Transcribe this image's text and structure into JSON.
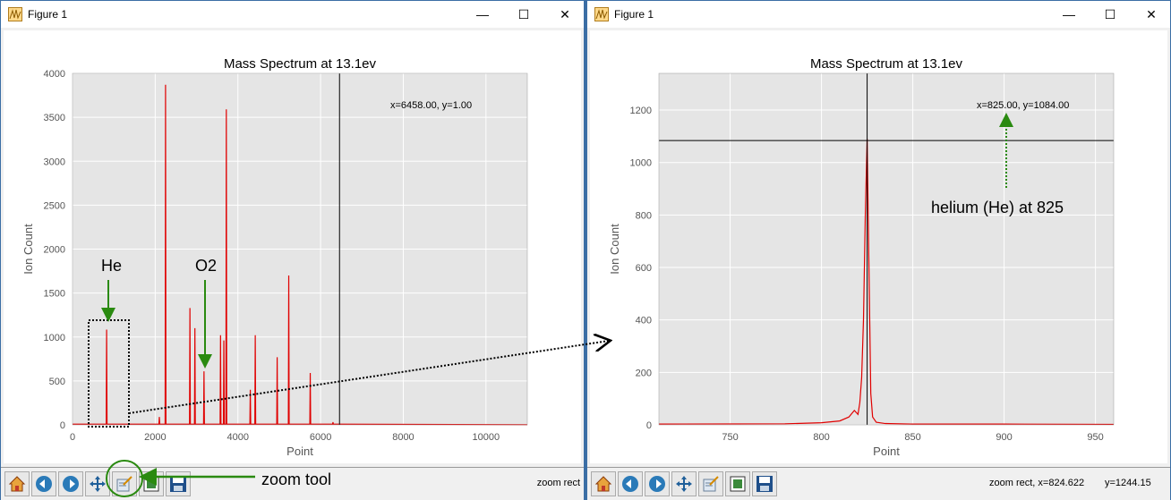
{
  "windows": [
    {
      "title": "Figure 1",
      "controls": {
        "minimize": "—",
        "maximize": "☐",
        "close": "✕"
      },
      "status": {
        "mode": "zoom rect",
        "coords": ""
      }
    },
    {
      "title": "Figure 1",
      "controls": {
        "minimize": "—",
        "maximize": "☐",
        "close": "✕"
      },
      "status": {
        "mode": "zoom rect, x=824.622",
        "coords": "y=1244.15"
      }
    }
  ],
  "toolbar_icons": [
    "home-icon",
    "back-icon",
    "forward-icon",
    "pan-icon",
    "zoom-icon",
    "configure-subplots-icon",
    "save-icon"
  ],
  "annotations": {
    "he": "He",
    "o2": "O2",
    "zoom_tool": "zoom tool",
    "helium": "helium (He) at 825"
  },
  "colors": {
    "line": "#e00000",
    "plot_bg": "#e5e5e5",
    "annotation_arrow": "#2a8a10"
  },
  "chart_data": [
    {
      "type": "line",
      "title": "Mass Spectrum at 13.1ev",
      "xlabel": "Point",
      "ylabel": "Ion Count",
      "xlim": [
        0,
        11000
      ],
      "ylim": [
        0,
        4000
      ],
      "xticks": [
        0,
        2000,
        4000,
        6000,
        8000,
        10000
      ],
      "yticks": [
        0,
        500,
        1000,
        1500,
        2000,
        2500,
        3000,
        3500,
        4000
      ],
      "cursor_readout": "x=6458.00, y=1.00",
      "cursor": {
        "x": 6458
      },
      "grid": true,
      "peaks": [
        {
          "x": 825,
          "y": 1084
        },
        {
          "x": 2100,
          "y": 90
        },
        {
          "x": 2250,
          "y": 3870
        },
        {
          "x": 2840,
          "y": 1330
        },
        {
          "x": 2960,
          "y": 1100
        },
        {
          "x": 3180,
          "y": 610
        },
        {
          "x": 3580,
          "y": 1020
        },
        {
          "x": 3660,
          "y": 960
        },
        {
          "x": 3720,
          "y": 3590
        },
        {
          "x": 4300,
          "y": 400
        },
        {
          "x": 4420,
          "y": 1020
        },
        {
          "x": 4950,
          "y": 770
        },
        {
          "x": 5230,
          "y": 1700
        },
        {
          "x": 5750,
          "y": 590
        },
        {
          "x": 6300,
          "y": 30
        }
      ]
    },
    {
      "type": "line",
      "title": "Mass Spectrum at 13.1ev",
      "xlabel": "Point",
      "ylabel": "Ion Count",
      "xlim": [
        711,
        960
      ],
      "ylim": [
        0,
        1340
      ],
      "xticks": [
        750,
        800,
        850,
        900,
        950
      ],
      "yticks": [
        0,
        200,
        400,
        600,
        800,
        1000,
        1200
      ],
      "cursor_readout": "x=825.00, y=1084.00",
      "cursor": {
        "x": 825,
        "y": 1084
      },
      "grid": true,
      "x": [
        711,
        780,
        800,
        810,
        815,
        818,
        820,
        821,
        822,
        823,
        824,
        825,
        826,
        827,
        828,
        830,
        835,
        850,
        900,
        960
      ],
      "y": [
        3,
        4,
        8,
        15,
        30,
        55,
        40,
        85,
        180,
        400,
        800,
        1090,
        600,
        120,
        30,
        10,
        5,
        3,
        3,
        2
      ]
    }
  ]
}
